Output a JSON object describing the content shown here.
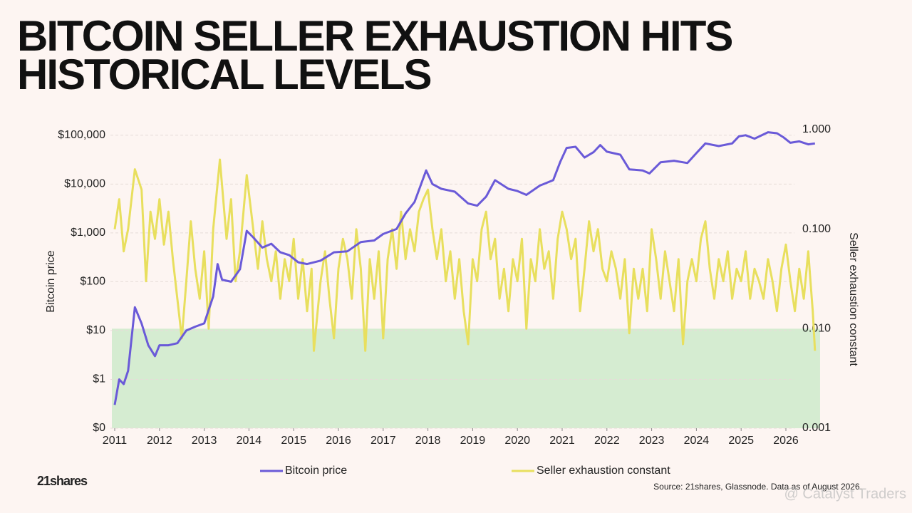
{
  "chart_data": {
    "type": "line",
    "title": "BITCOIN SELLER EXHAUSTION HITS HISTORICAL LEVELS",
    "ylabel": "Bitcoin price",
    "y2label": "Seller exhaustion constant",
    "source": "Source: 21shares, Glassnode. Data as of August 2026.",
    "logo": "21shares",
    "watermark": "@ Catalyst Traders",
    "log_scale": true,
    "grid": true,
    "highlight_below": 0.01,
    "highlight_color": "#d5ecd1",
    "xlim": [
      2011,
      2026.7
    ],
    "xticks": [
      2011,
      2012,
      2013,
      2014,
      2015,
      2016,
      2017,
      2018,
      2019,
      2020,
      2021,
      2022,
      2023,
      2024,
      2025,
      2026
    ],
    "ylim": [
      0.1,
      130000
    ],
    "yticks": [
      {
        "value": 0.1,
        "label": "$0"
      },
      {
        "value": 1,
        "label": "$1"
      },
      {
        "value": 10,
        "label": "$10"
      },
      {
        "value": 100,
        "label": "$100"
      },
      {
        "value": 1000,
        "label": "$1,000"
      },
      {
        "value": 10000,
        "label": "$10,000"
      },
      {
        "value": 100000,
        "label": "$100,000"
      }
    ],
    "y2lim": [
      0.001,
      1
    ],
    "y2ticks": [
      {
        "value": 0.001,
        "label": "0.001"
      },
      {
        "value": 0.01,
        "label": "0.010"
      },
      {
        "value": 0.1,
        "label": "0.100"
      },
      {
        "value": 1,
        "label": "1.000"
      }
    ],
    "series": [
      {
        "name": "Bitcoin price",
        "color": "#6a5ad8",
        "x": [
          2011.0,
          2011.1,
          2011.2,
          2011.3,
          2011.45,
          2011.6,
          2011.75,
          2011.9,
          2012.0,
          2012.2,
          2012.4,
          2012.6,
          2012.8,
          2013.0,
          2013.2,
          2013.3,
          2013.4,
          2013.6,
          2013.8,
          2013.95,
          2014.1,
          2014.3,
          2014.5,
          2014.7,
          2014.9,
          2015.1,
          2015.3,
          2015.6,
          2015.9,
          2016.2,
          2016.5,
          2016.8,
          2017.0,
          2017.3,
          2017.5,
          2017.7,
          2017.96,
          2018.1,
          2018.3,
          2018.6,
          2018.9,
          2019.1,
          2019.3,
          2019.5,
          2019.8,
          2020.0,
          2020.2,
          2020.5,
          2020.8,
          2020.96,
          2021.1,
          2021.3,
          2021.5,
          2021.7,
          2021.85,
          2022.0,
          2022.3,
          2022.5,
          2022.8,
          2022.95,
          2023.2,
          2023.5,
          2023.8,
          2024.0,
          2024.2,
          2024.5,
          2024.8,
          2024.95,
          2025.1,
          2025.3,
          2025.6,
          2025.8,
          2025.95,
          2026.1,
          2026.3,
          2026.5,
          2026.65
        ],
        "values": [
          0.3,
          1.0,
          0.8,
          1.5,
          30,
          14,
          5,
          3,
          5,
          5,
          5.5,
          10,
          12,
          14,
          50,
          230,
          110,
          100,
          180,
          1100,
          800,
          500,
          600,
          400,
          350,
          250,
          230,
          270,
          400,
          420,
          650,
          700,
          950,
          1200,
          2500,
          4300,
          19000,
          10000,
          8000,
          7000,
          4000,
          3600,
          5500,
          12000,
          8000,
          7200,
          6000,
          9300,
          12000,
          29000,
          55000,
          58000,
          35000,
          45000,
          63000,
          46000,
          40000,
          20000,
          19000,
          16500,
          28000,
          30000,
          27000,
          43000,
          68000,
          60000,
          68000,
          95000,
          100000,
          85000,
          115000,
          110000,
          90000,
          70000,
          75000,
          65000,
          68000
        ]
      },
      {
        "name": "Seller exhaustion constant",
        "color": "#e8df5e",
        "axis": "y2",
        "x": [
          2011.0,
          2011.1,
          2011.2,
          2011.3,
          2011.45,
          2011.6,
          2011.7,
          2011.8,
          2011.9,
          2012.0,
          2012.1,
          2012.2,
          2012.3,
          2012.4,
          2012.5,
          2012.6,
          2012.7,
          2012.8,
          2012.9,
          2013.0,
          2013.1,
          2013.2,
          2013.35,
          2013.5,
          2013.6,
          2013.7,
          2013.8,
          2013.95,
          2014.05,
          2014.2,
          2014.3,
          2014.4,
          2014.5,
          2014.6,
          2014.7,
          2014.8,
          2014.9,
          2015.0,
          2015.1,
          2015.2,
          2015.3,
          2015.4,
          2015.45,
          2015.6,
          2015.7,
          2015.8,
          2015.9,
          2016.0,
          2016.1,
          2016.2,
          2016.3,
          2016.4,
          2016.5,
          2016.6,
          2016.7,
          2016.8,
          2016.9,
          2017.0,
          2017.1,
          2017.2,
          2017.3,
          2017.4,
          2017.5,
          2017.6,
          2017.7,
          2017.8,
          2017.9,
          2018.0,
          2018.1,
          2018.2,
          2018.3,
          2018.4,
          2018.5,
          2018.6,
          2018.7,
          2018.8,
          2018.9,
          2019.0,
          2019.1,
          2019.2,
          2019.3,
          2019.4,
          2019.5,
          2019.6,
          2019.7,
          2019.8,
          2019.9,
          2020.0,
          2020.1,
          2020.2,
          2020.3,
          2020.4,
          2020.5,
          2020.6,
          2020.7,
          2020.8,
          2020.9,
          2021.0,
          2021.1,
          2021.2,
          2021.3,
          2021.4,
          2021.5,
          2021.6,
          2021.7,
          2021.8,
          2021.9,
          2022.0,
          2022.1,
          2022.2,
          2022.3,
          2022.4,
          2022.5,
          2022.6,
          2022.7,
          2022.8,
          2022.9,
          2023.0,
          2023.1,
          2023.2,
          2023.3,
          2023.4,
          2023.5,
          2023.6,
          2023.7,
          2023.8,
          2023.9,
          2024.0,
          2024.1,
          2024.2,
          2024.3,
          2024.4,
          2024.5,
          2024.6,
          2024.7,
          2024.8,
          2024.9,
          2025.0,
          2025.1,
          2025.2,
          2025.3,
          2025.4,
          2025.5,
          2025.6,
          2025.7,
          2025.8,
          2025.9,
          2026.0,
          2026.1,
          2026.2,
          2026.3,
          2026.4,
          2026.5,
          2026.55,
          2026.6,
          2026.65
        ],
        "values": [
          0.1,
          0.2,
          0.06,
          0.1,
          0.4,
          0.25,
          0.03,
          0.15,
          0.08,
          0.2,
          0.07,
          0.15,
          0.05,
          0.02,
          0.008,
          0.03,
          0.12,
          0.04,
          0.02,
          0.06,
          0.01,
          0.1,
          0.5,
          0.08,
          0.2,
          0.03,
          0.06,
          0.35,
          0.15,
          0.04,
          0.12,
          0.05,
          0.03,
          0.06,
          0.02,
          0.05,
          0.03,
          0.08,
          0.02,
          0.05,
          0.015,
          0.04,
          0.006,
          0.03,
          0.06,
          0.02,
          0.008,
          0.04,
          0.08,
          0.05,
          0.02,
          0.1,
          0.04,
          0.006,
          0.05,
          0.02,
          0.06,
          0.008,
          0.05,
          0.1,
          0.04,
          0.15,
          0.05,
          0.1,
          0.06,
          0.15,
          0.2,
          0.25,
          0.1,
          0.05,
          0.1,
          0.03,
          0.06,
          0.02,
          0.05,
          0.015,
          0.007,
          0.05,
          0.03,
          0.1,
          0.15,
          0.05,
          0.08,
          0.02,
          0.04,
          0.015,
          0.05,
          0.03,
          0.08,
          0.01,
          0.05,
          0.03,
          0.1,
          0.04,
          0.06,
          0.02,
          0.08,
          0.15,
          0.1,
          0.05,
          0.08,
          0.015,
          0.04,
          0.12,
          0.06,
          0.1,
          0.04,
          0.03,
          0.06,
          0.04,
          0.02,
          0.05,
          0.009,
          0.04,
          0.02,
          0.04,
          0.015,
          0.1,
          0.05,
          0.02,
          0.06,
          0.03,
          0.015,
          0.05,
          0.007,
          0.03,
          0.05,
          0.03,
          0.08,
          0.12,
          0.04,
          0.02,
          0.05,
          0.03,
          0.06,
          0.02,
          0.04,
          0.03,
          0.06,
          0.02,
          0.04,
          0.03,
          0.02,
          0.05,
          0.03,
          0.015,
          0.04,
          0.07,
          0.03,
          0.015,
          0.04,
          0.02,
          0.06,
          0.03,
          0.015,
          0.006
        ]
      }
    ]
  }
}
